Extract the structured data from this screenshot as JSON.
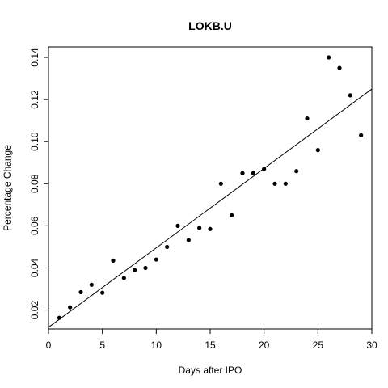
{
  "chart_data": {
    "type": "scatter",
    "title": "LOKB.U",
    "xlabel": "Days after IPO",
    "ylabel": "Percentage Change",
    "xlim": [
      0,
      30
    ],
    "ylim": [
      0.011,
      0.145
    ],
    "x_ticks": [
      0,
      5,
      10,
      15,
      20,
      25,
      30
    ],
    "x_tick_labels": [
      "0",
      "5",
      "10",
      "15",
      "20",
      "25",
      "30"
    ],
    "y_ticks": [
      0.02,
      0.04,
      0.06,
      0.08,
      0.1,
      0.12,
      0.14
    ],
    "y_tick_labels": [
      "0.02",
      "0.04",
      "0.06",
      "0.08",
      "0.10",
      "0.12",
      "0.14"
    ],
    "grid": false,
    "legend": "none",
    "colors": {
      "points": "#000000",
      "line": "#000000",
      "frame": "#000000"
    },
    "points": {
      "x": [
        1,
        2,
        3,
        4,
        5,
        6,
        7,
        8,
        9,
        10,
        11,
        12,
        13,
        14,
        15,
        16,
        17,
        18,
        19,
        20,
        21,
        22,
        23,
        24,
        25,
        26,
        27,
        28,
        29
      ],
      "y": [
        0.0163,
        0.0213,
        0.0285,
        0.032,
        0.0282,
        0.0435,
        0.0352,
        0.039,
        0.04,
        0.044,
        0.05,
        0.06,
        0.0532,
        0.059,
        0.0585,
        0.08,
        0.065,
        0.085,
        0.085,
        0.087,
        0.08,
        0.08,
        0.086,
        0.111,
        0.096,
        0.14,
        0.135,
        0.122,
        0.103
      ]
    },
    "fit_line": {
      "x": [
        0,
        30
      ],
      "y": [
        0.0118,
        0.125
      ]
    }
  }
}
